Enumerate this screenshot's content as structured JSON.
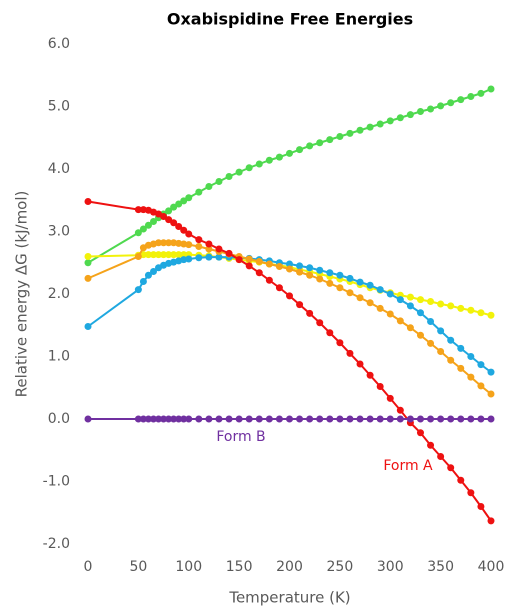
{
  "chart_data": {
    "type": "line",
    "title": "Oxabispidine Free Energies",
    "x_label": "Temperature (K)",
    "y_label": "Relative energy ΔG (kJ/mol)",
    "x": [
      0,
      50,
      55,
      60,
      65,
      70,
      75,
      80,
      85,
      90,
      95,
      100,
      110,
      120,
      130,
      140,
      150,
      160,
      170,
      180,
      190,
      200,
      210,
      220,
      230,
      240,
      250,
      260,
      270,
      280,
      290,
      300,
      310,
      320,
      330,
      340,
      350,
      360,
      370,
      380,
      390,
      400
    ],
    "series": [
      {
        "color": "#4fd94f",
        "values": [
          2.5,
          2.98,
          3.04,
          3.1,
          3.16,
          3.22,
          3.28,
          3.33,
          3.39,
          3.44,
          3.49,
          3.54,
          3.63,
          3.72,
          3.8,
          3.88,
          3.95,
          4.02,
          4.08,
          4.14,
          4.19,
          4.25,
          4.31,
          4.37,
          4.42,
          4.47,
          4.52,
          4.57,
          4.62,
          4.67,
          4.72,
          4.77,
          4.82,
          4.87,
          4.92,
          4.96,
          5.01,
          5.06,
          5.11,
          5.16,
          5.21,
          5.28
        ]
      },
      {
        "color": "#f2f20a",
        "values": [
          2.6,
          2.62,
          2.63,
          2.63,
          2.63,
          2.63,
          2.63,
          2.63,
          2.63,
          2.63,
          2.63,
          2.63,
          2.62,
          2.61,
          2.59,
          2.57,
          2.55,
          2.53,
          2.51,
          2.48,
          2.46,
          2.43,
          2.39,
          2.36,
          2.32,
          2.28,
          2.24,
          2.2,
          2.15,
          2.1,
          2.06,
          2.02,
          1.98,
          1.95,
          1.91,
          1.88,
          1.84,
          1.81,
          1.77,
          1.74,
          1.7,
          1.66
        ]
      },
      {
        "color": "#1fa8e0",
        "values": [
          1.48,
          2.07,
          2.2,
          2.3,
          2.36,
          2.42,
          2.46,
          2.49,
          2.51,
          2.53,
          2.55,
          2.56,
          2.58,
          2.59,
          2.59,
          2.59,
          2.58,
          2.57,
          2.55,
          2.53,
          2.5,
          2.48,
          2.45,
          2.42,
          2.38,
          2.34,
          2.3,
          2.25,
          2.19,
          2.14,
          2.07,
          2.0,
          1.91,
          1.81,
          1.7,
          1.56,
          1.41,
          1.26,
          1.13,
          1.0,
          0.87,
          0.75
        ]
      },
      {
        "color": "#f5a31a",
        "values": [
          2.25,
          2.6,
          2.74,
          2.78,
          2.8,
          2.82,
          2.82,
          2.82,
          2.82,
          2.81,
          2.8,
          2.79,
          2.76,
          2.72,
          2.68,
          2.64,
          2.6,
          2.56,
          2.52,
          2.48,
          2.44,
          2.4,
          2.35,
          2.3,
          2.24,
          2.17,
          2.1,
          2.02,
          1.94,
          1.86,
          1.77,
          1.68,
          1.57,
          1.46,
          1.34,
          1.21,
          1.08,
          0.94,
          0.81,
          0.67,
          0.53,
          0.4
        ]
      },
      {
        "color": "#ee1111",
        "values": [
          3.48,
          3.35,
          3.35,
          3.34,
          3.31,
          3.28,
          3.24,
          3.19,
          3.14,
          3.08,
          3.02,
          2.96,
          2.87,
          2.8,
          2.72,
          2.65,
          2.55,
          2.45,
          2.34,
          2.22,
          2.1,
          1.97,
          1.83,
          1.69,
          1.54,
          1.38,
          1.22,
          1.05,
          0.88,
          0.7,
          0.52,
          0.33,
          0.14,
          -0.06,
          -0.22,
          -0.42,
          -0.6,
          -0.78,
          -0.98,
          -1.18,
          -1.4,
          -1.63
        ]
      },
      {
        "color": "#7030a0",
        "values": [
          0,
          0,
          0,
          0,
          0,
          0,
          0,
          0,
          0,
          0,
          0,
          0,
          0,
          0,
          0,
          0,
          0,
          0,
          0,
          0,
          0,
          0,
          0,
          0,
          0,
          0,
          0,
          0,
          0,
          0,
          0,
          0,
          0,
          0,
          0,
          0,
          0,
          0,
          0,
          0,
          0,
          0
        ]
      }
    ],
    "annotations": [
      {
        "text": "Form B",
        "color": "#7030a0"
      },
      {
        "text": "Form A",
        "color": "#ee1111"
      }
    ],
    "xlim": [
      0,
      400
    ],
    "xticks": [
      0,
      50,
      100,
      150,
      200,
      250,
      300,
      350,
      400
    ],
    "ylim": [
      -2,
      6
    ],
    "yticks": [
      {
        "value": -2,
        "label": "-2.0"
      },
      {
        "value": -1,
        "label": "-1.0"
      },
      {
        "value": 0,
        "label": "0.0"
      },
      {
        "value": 1,
        "label": "1.0"
      },
      {
        "value": 2,
        "label": "2.0"
      },
      {
        "value": 3,
        "label": "3.0"
      },
      {
        "value": 4,
        "label": "4.0"
      },
      {
        "value": 5,
        "label": "5.0"
      },
      {
        "value": 6,
        "label": "6.0"
      }
    ],
    "grid": false
  }
}
